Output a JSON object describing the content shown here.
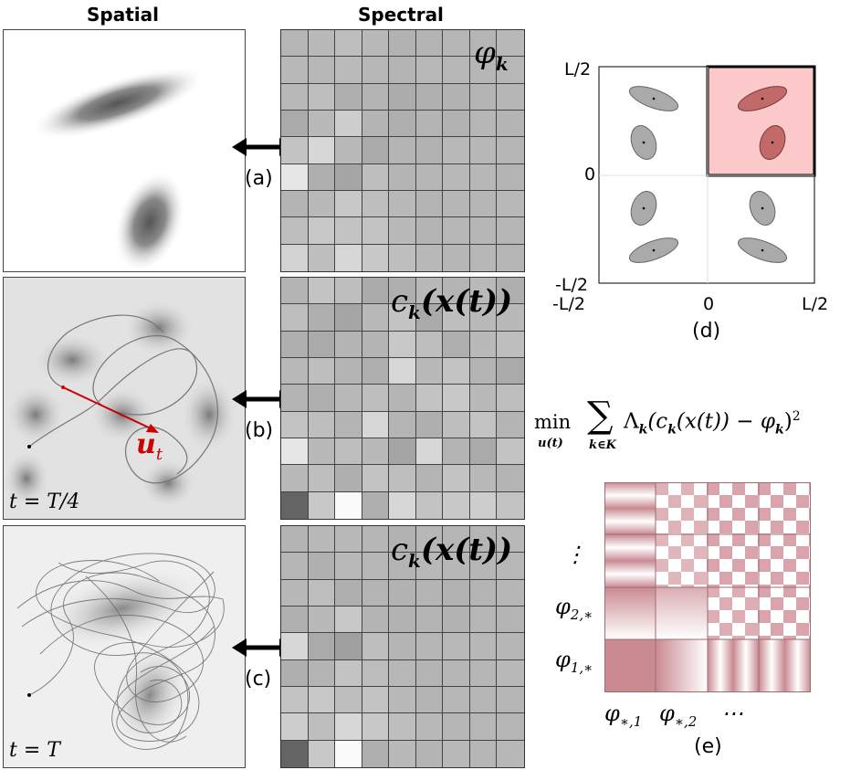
{
  "headers": {
    "spatial": "Spatial",
    "spectral": "Spectral"
  },
  "labels": {
    "a": "(a)",
    "b": "(b)",
    "c": "(c)",
    "d": "(d)",
    "e": "(e)"
  },
  "spatial_panels": {
    "b_time": "t = T/4",
    "c_time": "t = T",
    "control_label": "u",
    "control_sub": "t"
  },
  "spectral_titles": {
    "a": "φ",
    "a_sub": "k",
    "b": "c",
    "b_sub": "k",
    "b_arg": "(x(t))",
    "c": "c",
    "c_sub": "k",
    "c_arg": "(x(t))"
  },
  "grid_a": [
    [
      181,
      185,
      190,
      185,
      178,
      180,
      182,
      181,
      184
    ],
    [
      185,
      183,
      186,
      183,
      180,
      184,
      183,
      182,
      183
    ],
    [
      184,
      190,
      175,
      180,
      172,
      176,
      178,
      180,
      182
    ],
    [
      170,
      185,
      205,
      180,
      175,
      180,
      178,
      182,
      180
    ],
    [
      195,
      215,
      185,
      170,
      180,
      178,
      184,
      183,
      181
    ],
    [
      230,
      175,
      165,
      190,
      180,
      182,
      185,
      183,
      180
    ],
    [
      180,
      185,
      200,
      190,
      185,
      180,
      182,
      182,
      184
    ],
    [
      190,
      200,
      195,
      195,
      185,
      180,
      183,
      182,
      181
    ],
    [
      210,
      190,
      215,
      200,
      190,
      185,
      182,
      183,
      181
    ],
    [
      100,
      195,
      250,
      170,
      185,
      180,
      184,
      182,
      183
    ]
  ],
  "grid_b": [
    [
      180,
      195,
      190,
      170,
      175,
      185,
      180,
      185,
      175
    ],
    [
      190,
      175,
      165,
      185,
      195,
      170,
      190,
      185,
      185
    ],
    [
      175,
      170,
      180,
      180,
      200,
      190,
      175,
      185,
      190
    ],
    [
      185,
      190,
      180,
      175,
      215,
      185,
      195,
      180,
      170
    ],
    [
      180,
      175,
      185,
      190,
      180,
      195,
      200,
      185,
      190
    ],
    [
      195,
      190,
      180,
      215,
      180,
      175,
      190,
      195,
      180
    ],
    [
      230,
      185,
      190,
      185,
      165,
      215,
      180,
      170,
      195
    ],
    [
      185,
      190,
      175,
      195,
      190,
      180,
      195,
      185,
      180
    ],
    [
      100,
      200,
      250,
      175,
      215,
      195,
      200,
      205,
      195
    ]
  ],
  "grid_c": [
    [
      180,
      185,
      185,
      182,
      178,
      183,
      182,
      181,
      184
    ],
    [
      182,
      176,
      184,
      183,
      180,
      184,
      183,
      182,
      183
    ],
    [
      183,
      190,
      175,
      180,
      178,
      180,
      178,
      180,
      182
    ],
    [
      176,
      185,
      200,
      180,
      178,
      180,
      178,
      182,
      180
    ],
    [
      215,
      170,
      160,
      190,
      180,
      182,
      184,
      183,
      181
    ],
    [
      175,
      180,
      195,
      188,
      183,
      180,
      182,
      182,
      184
    ],
    [
      195,
      200,
      190,
      195,
      185,
      180,
      183,
      182,
      181
    ],
    [
      205,
      190,
      215,
      200,
      190,
      185,
      182,
      183,
      181
    ],
    [
      100,
      200,
      250,
      175,
      185,
      180,
      184,
      182,
      183
    ]
  ],
  "panel_d": {
    "tick_top": "L/2",
    "tick_mid": "0",
    "tick_bot": "-L/2",
    "tick_xl": "-L/2",
    "tick_xm": "0",
    "tick_xr": "L/2",
    "highlight_color": "#fbc9c9"
  },
  "equation": {
    "min": "min",
    "min_sub": "u(t)",
    "sum_sub": "k∈K",
    "body": "Λ",
    "body_sub": "k",
    "inner": "(c",
    "inner_sub": "k",
    "inner_arg": "(x(t)) − φ",
    "inner_sub2": "k",
    "close": ")",
    "power": "2"
  },
  "panel_e": {
    "rows": [
      "⋮",
      "φ",
      "φ"
    ],
    "row_subs": [
      "",
      "2,∗",
      "1,∗"
    ],
    "cols": [
      "φ",
      "φ",
      "⋯"
    ],
    "col_subs": [
      "∗,1",
      "∗,2",
      ""
    ],
    "base_color": "#c98a92"
  }
}
